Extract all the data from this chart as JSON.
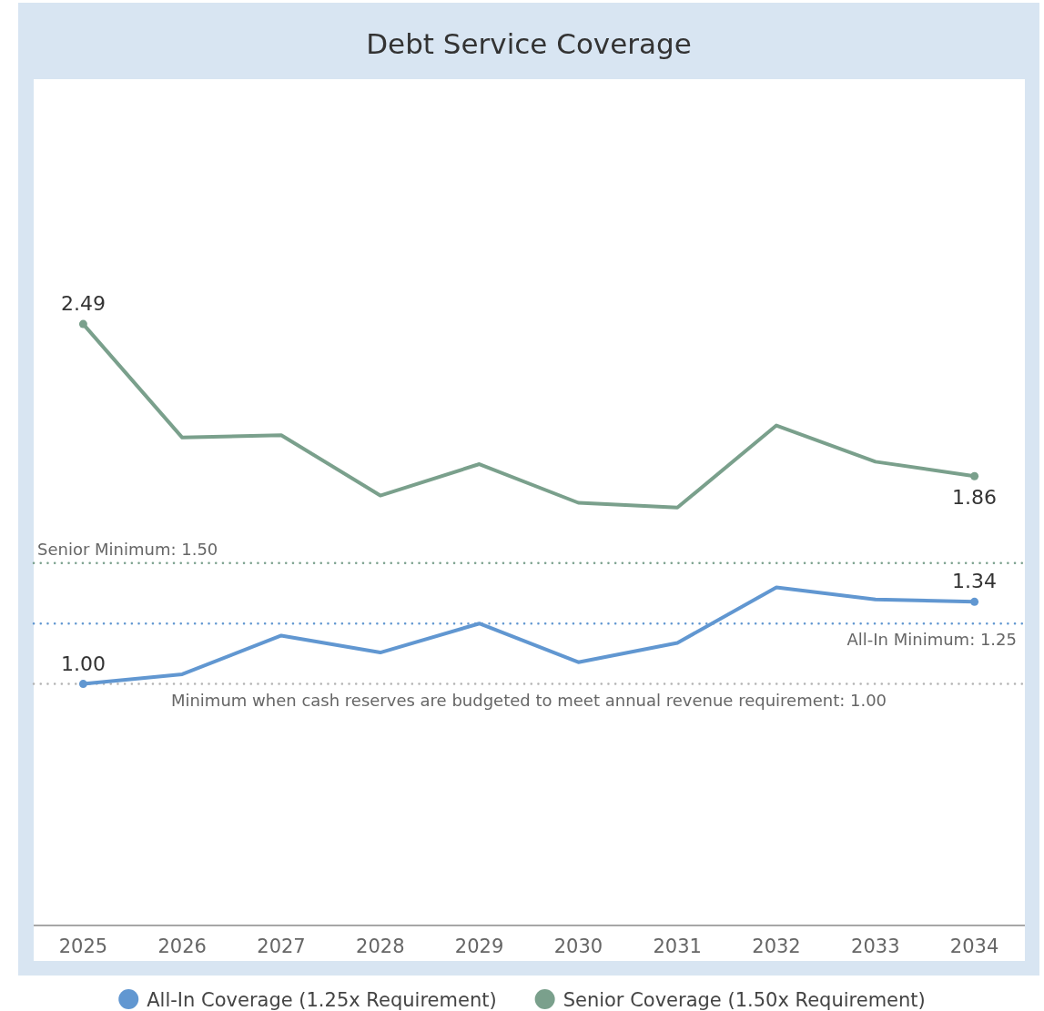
{
  "chart_data": {
    "type": "line",
    "title": "Debt Service Coverage",
    "categories": [
      "2025",
      "2026",
      "2027",
      "2028",
      "2029",
      "2030",
      "2031",
      "2032",
      "2033",
      "2034"
    ],
    "series": [
      {
        "name": "All-In Coverage (1.25x Requirement)",
        "color": "#6197d1",
        "values": [
          1.0,
          1.04,
          1.2,
          1.13,
          1.25,
          1.09,
          1.17,
          1.4,
          1.35,
          1.34
        ],
        "value_labels": [
          "1.00",
          null,
          null,
          null,
          null,
          null,
          null,
          null,
          null,
          "1.34"
        ]
      },
      {
        "name": "Senior Coverage (1.50x Requirement)",
        "color": "#7aa08c",
        "values": [
          2.49,
          2.02,
          2.03,
          1.78,
          1.91,
          1.75,
          1.73,
          2.07,
          1.92,
          1.86
        ],
        "value_labels": [
          "2.49",
          null,
          null,
          null,
          null,
          null,
          null,
          null,
          null,
          "1.86"
        ]
      }
    ],
    "ylim": [
      0,
      3.5
    ],
    "tick_labels": "x",
    "legend": "bottom",
    "line_style": "solid",
    "ref_lines": [
      {
        "axis": "y",
        "value": 1.5,
        "label": "Senior Minimum: 1.50",
        "color": "#7aa08c",
        "line_style": "dotted"
      },
      {
        "axis": "y",
        "value": 1.25,
        "label": "All-In Minimum: 1.25",
        "color": "#6197d1",
        "line_style": "dotted"
      },
      {
        "axis": "y",
        "value": 1.0,
        "label": "Minimum when cash reserves are budgeted to meet annual revenue requirement: 1.00",
        "color": "#b3b3b3",
        "line_style": "dotted"
      }
    ]
  }
}
